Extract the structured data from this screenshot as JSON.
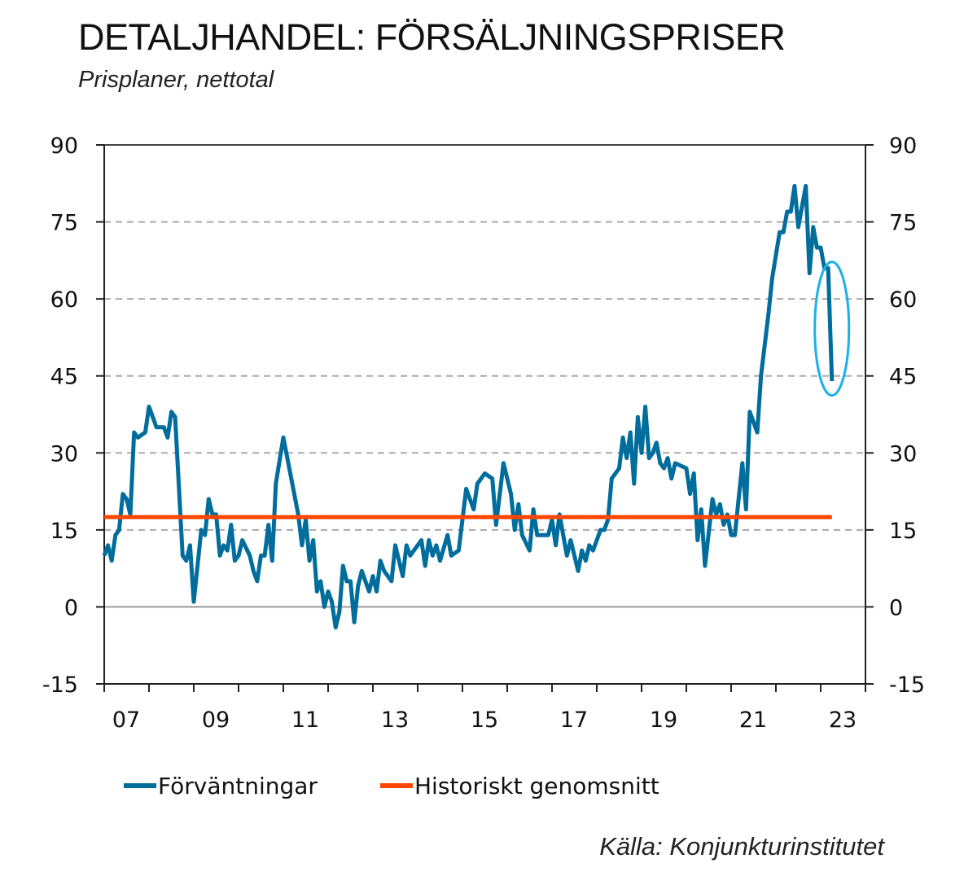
{
  "chart_data": {
    "type": "line",
    "title": "DETALJHANDEL: FÖRSÄLJNINGSPRISER",
    "subtitle": "Prisplaner, nettotal",
    "source": "Källa: Konjunkturinstitutet",
    "xlabel": "",
    "ylabel": "",
    "ylim": [
      -15,
      90
    ],
    "yticks": [
      -15,
      0,
      15,
      30,
      45,
      60,
      75,
      90
    ],
    "xlim": [
      "2007-01",
      "2023-12"
    ],
    "xtick_labels": [
      "07",
      "09",
      "11",
      "13",
      "15",
      "17",
      "19",
      "21",
      "23"
    ],
    "grid": "horizontal dashed",
    "legend_placement": "bottom",
    "annotation": "ellipse around latest drop",
    "colors": {
      "series": "#006d9c",
      "average": "#ff4500",
      "annotation": "#1ab0e8"
    },
    "series": [
      {
        "name": "Förväntningar",
        "x": [
          "2007-01",
          "2007-02",
          "2007-03",
          "2007-04",
          "2007-05",
          "2007-06",
          "2007-07",
          "2007-08",
          "2007-09",
          "2007-10",
          "2007-12",
          "2008-01",
          "2008-03",
          "2008-05",
          "2008-06",
          "2008-07",
          "2008-08",
          "2008-10",
          "2008-11",
          "2008-12",
          "2009-01",
          "2009-03",
          "2009-04",
          "2009-05",
          "2009-06",
          "2009-07",
          "2009-08",
          "2009-09",
          "2009-10",
          "2009-11",
          "2009-12",
          "2010-01",
          "2010-02",
          "2010-04",
          "2010-05",
          "2010-06",
          "2010-07",
          "2010-08",
          "2010-09",
          "2010-10",
          "2010-11",
          "2011-01",
          "2011-05",
          "2011-06",
          "2011-07",
          "2011-08",
          "2011-09",
          "2011-10",
          "2011-11",
          "2011-12",
          "2012-01",
          "2012-02",
          "2012-03",
          "2012-04",
          "2012-05",
          "2012-06",
          "2012-07",
          "2012-08",
          "2012-09",
          "2012-10",
          "2012-12",
          "2013-01",
          "2013-02",
          "2013-03",
          "2013-04",
          "2013-05",
          "2013-06",
          "2013-07",
          "2013-09",
          "2013-10",
          "2013-11",
          "2014-02",
          "2014-03",
          "2014-04",
          "2014-05",
          "2014-06",
          "2014-07",
          "2014-09",
          "2014-10",
          "2014-12",
          "2015-02",
          "2015-04",
          "2015-05",
          "2015-07",
          "2015-09",
          "2015-10",
          "2015-12",
          "2016-02",
          "2016-03",
          "2016-04",
          "2016-05",
          "2016-07",
          "2016-08",
          "2016-09",
          "2016-12",
          "2017-01",
          "2017-02",
          "2017-03",
          "2017-05",
          "2017-06",
          "2017-08",
          "2017-09",
          "2017-10",
          "2017-11",
          "2017-12",
          "2018-02",
          "2018-03",
          "2018-04",
          "2018-05",
          "2018-07",
          "2018-08",
          "2018-09",
          "2018-10",
          "2018-11",
          "2018-12",
          "2019-01",
          "2019-02",
          "2019-03",
          "2019-04",
          "2019-05",
          "2019-06",
          "2019-07",
          "2019-08",
          "2019-09",
          "2019-10",
          "2020-01",
          "2020-02",
          "2020-03",
          "2020-04",
          "2020-05",
          "2020-06",
          "2020-08",
          "2020-09",
          "2020-10",
          "2020-11",
          "2020-12",
          "2021-01",
          "2021-02",
          "2021-04",
          "2021-05",
          "2021-06",
          "2021-08",
          "2021-09",
          "2021-11",
          "2021-12",
          "2022-02",
          "2022-03",
          "2022-04",
          "2022-05",
          "2022-06",
          "2022-07",
          "2022-08",
          "2022-09",
          "2022-10",
          "2022-11",
          "2022-12",
          "2023-01",
          "2023-02",
          "2023-03",
          "2023-04"
        ],
        "y": [
          10,
          12,
          9,
          14,
          15,
          22,
          21,
          18,
          34,
          33,
          34,
          39,
          35,
          35,
          33,
          38,
          37,
          10,
          9,
          12,
          1,
          15,
          14,
          21,
          18,
          18,
          10,
          12,
          11,
          16,
          9,
          10,
          13,
          10,
          7,
          5,
          10,
          10,
          16,
          9,
          24,
          33,
          18,
          12,
          17,
          9,
          13,
          3,
          5,
          0,
          3,
          1,
          -4,
          -1,
          8,
          5,
          5,
          -3,
          4,
          7,
          3,
          6,
          3,
          9,
          7,
          6,
          5,
          12,
          6,
          12,
          10,
          13,
          8,
          13,
          10,
          12,
          9,
          14,
          10,
          11,
          23,
          19,
          24,
          26,
          25,
          16,
          28,
          22,
          15,
          20,
          14,
          11,
          19,
          14,
          14,
          17,
          12,
          18,
          10,
          13,
          7,
          11,
          9,
          12,
          11,
          15,
          15,
          17,
          25,
          27,
          33,
          29,
          34,
          24,
          37,
          30,
          39,
          29,
          30,
          32,
          28,
          27,
          29,
          25,
          28,
          27,
          22,
          26,
          13,
          19,
          8,
          21,
          18,
          20,
          16,
          18,
          14,
          14,
          28,
          19,
          38,
          34,
          45,
          57,
          64,
          73,
          73,
          77,
          77,
          82,
          74,
          78,
          82,
          65,
          74,
          70,
          70,
          66,
          66,
          44
        ]
      },
      {
        "name": "Historiskt genomsnitt",
        "x": [
          "2007-01",
          "2023-04"
        ],
        "y": [
          17.5,
          17.5
        ]
      }
    ]
  }
}
